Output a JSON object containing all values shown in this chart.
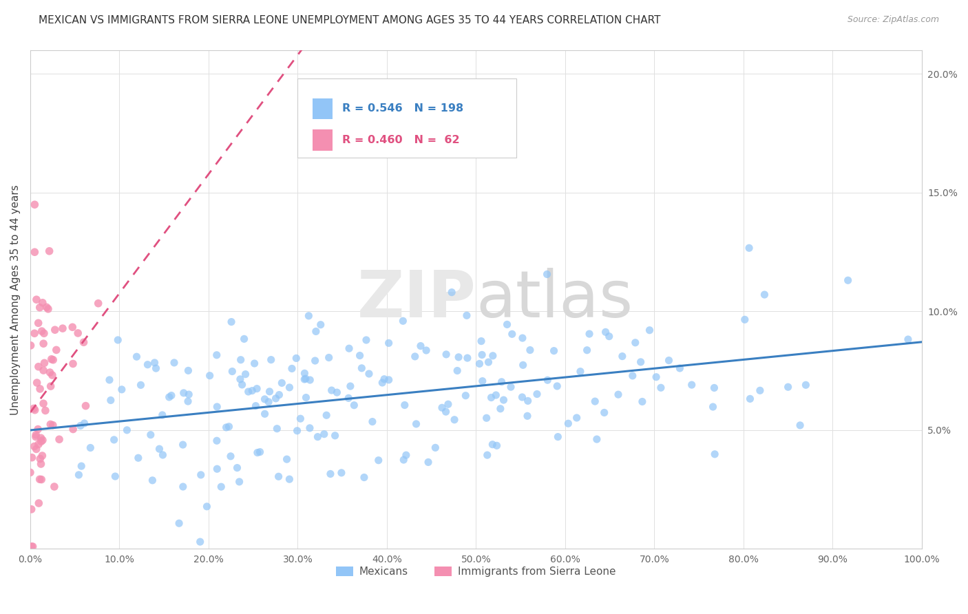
{
  "title": "MEXICAN VS IMMIGRANTS FROM SIERRA LEONE UNEMPLOYMENT AMONG AGES 35 TO 44 YEARS CORRELATION CHART",
  "source": "Source: ZipAtlas.com",
  "ylabel": "Unemployment Among Ages 35 to 44 years",
  "legend_labels": [
    "Mexicans",
    "Immigrants from Sierra Leone"
  ],
  "legend_r": [
    0.546,
    0.46
  ],
  "legend_n": [
    198,
    62
  ],
  "color_mexican": "#92C5F7",
  "color_sierraleone": "#F48FB1",
  "trendline_color_mexican": "#3A7FC1",
  "trendline_color_sierraleone": "#E05080",
  "watermark_zip": "ZIP",
  "watermark_atlas": "atlas",
  "xlim": [
    0.0,
    1.0
  ],
  "ylim": [
    0.0,
    0.21
  ],
  "x_ticks": [
    0.0,
    0.1,
    0.2,
    0.3,
    0.4,
    0.5,
    0.6,
    0.7,
    0.8,
    0.9,
    1.0
  ],
  "y_ticks": [
    0.0,
    0.05,
    0.1,
    0.15,
    0.2
  ],
  "x_tick_labels": [
    "0.0%",
    "10.0%",
    "20.0%",
    "30.0%",
    "40.0%",
    "50.0%",
    "60.0%",
    "70.0%",
    "80.0%",
    "90.0%",
    "100.0%"
  ],
  "y_tick_labels": [
    "",
    "5.0%",
    "10.0%",
    "15.0%",
    "20.0%"
  ],
  "background_color": "#ffffff",
  "grid_color": "#e0e0e0",
  "n_mexican": 198,
  "n_sierraleone": 62
}
